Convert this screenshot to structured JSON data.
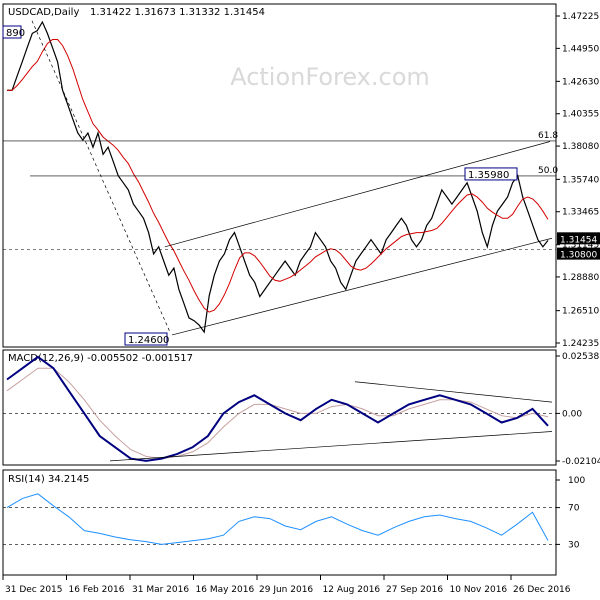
{
  "header": {
    "symbol": "USDCAD,Daily",
    "ohlc": "1.31422 1.31673 1.31332 1.31454"
  },
  "watermark": "ActionForex.com",
  "colors": {
    "price_line": "#000000",
    "ma": "#d40000",
    "macd_line": "#000080",
    "macd_signal": "#c8a0a0",
    "rsi": "#1e90ff",
    "grid_dash": "#000000",
    "watermark": "#d9d9d9"
  },
  "chart_data": [
    {
      "type": "line",
      "panel": "price",
      "title": "USDCAD,Daily",
      "y_axis_ticks": [
        "1.47225",
        "1.44950",
        "1.42630",
        "1.40355",
        "1.38080",
        "1.35740",
        "1.33465",
        "1.31145",
        "1.28880",
        "1.26510",
        "1.24235"
      ],
      "ylim": [
        1.24235,
        1.47225
      ],
      "x_ticks": [
        "31 Dec 2015",
        "16 Feb 2016",
        "31 Mar 2016",
        "16 May 2016",
        "29 Jun 2016",
        "12 Aug 2016",
        "27 Sep 2016",
        "10 Nov 2016",
        "26 Dec 2016"
      ],
      "series": [
        {
          "values": [
            1.42,
            1.42,
            1.43,
            1.44,
            1.45,
            1.46,
            1.462,
            1.468,
            1.46,
            1.45,
            1.44,
            1.42,
            1.41,
            1.4,
            1.39,
            1.385,
            1.39,
            1.38,
            1.39,
            1.375,
            1.38,
            1.37,
            1.36,
            1.355,
            1.35,
            1.34,
            1.335,
            1.33,
            1.32,
            1.305,
            1.31,
            1.3,
            1.29,
            1.295,
            1.28,
            1.27,
            1.26,
            1.258,
            1.255,
            1.25,
            1.2755,
            1.29,
            1.3,
            1.305,
            1.315,
            1.32,
            1.31,
            1.3,
            1.29,
            1.285,
            1.275,
            1.28,
            1.285,
            1.29,
            1.295,
            1.3,
            1.295,
            1.29,
            1.3,
            1.305,
            1.31,
            1.32,
            1.315,
            1.31,
            1.3,
            1.295,
            1.285,
            1.28,
            1.29,
            1.3,
            1.305,
            1.31,
            1.315,
            1.31,
            1.305,
            1.315,
            1.32,
            1.325,
            1.33,
            1.325,
            1.315,
            1.31,
            1.315,
            1.325,
            1.33,
            1.34,
            1.35,
            1.345,
            1.34,
            1.345,
            1.35,
            1.355,
            1.345,
            1.335,
            1.32,
            1.31,
            1.325,
            1.335,
            1.34,
            1.345,
            1.355,
            1.36,
            1.345,
            1.335,
            1.325,
            1.315,
            1.31,
            1.3145
          ]
        }
      ],
      "annotations": [
        {
          "text": "1.24600",
          "x": "31 Mar 2016",
          "y": 1.246
        },
        {
          "text": "1.35980",
          "x": "26 Dec 2016",
          "y": 1.3598
        },
        {
          "text": "1.30800",
          "y": 1.308
        },
        {
          "text": "1.31454",
          "y": 1.31454
        },
        {
          "text": "890",
          "x": "31 Dec 2015",
          "y": 1.4689
        },
        {
          "text": "61.8",
          "y": 1.3844
        },
        {
          "text": "50.0",
          "y": 1.3598
        }
      ]
    },
    {
      "type": "line",
      "panel": "macd",
      "title": "MACD(12,26,9) -0.005502 -0.001517",
      "y_axis_ticks": [
        "0.02538",
        "0.00",
        "-0.021042"
      ],
      "ylim": [
        -0.021042,
        0.02538
      ],
      "series": [
        {
          "values": [
            0.015,
            0.02,
            0.025,
            0.02,
            0.01,
            0.0,
            -0.01,
            -0.015,
            -0.02,
            -0.021,
            -0.02,
            -0.018,
            -0.015,
            -0.01,
            0.0,
            0.005,
            0.008,
            0.004,
            0.0,
            -0.003,
            0.002,
            0.006,
            0.004,
            0.0,
            -0.004,
            0.0,
            0.004,
            0.006,
            0.008,
            0.006,
            0.004,
            0.0,
            -0.004,
            -0.002,
            0.002,
            -0.0055
          ]
        },
        {
          "values": [
            0.01,
            0.015,
            0.02,
            0.02,
            0.014,
            0.006,
            -0.003,
            -0.01,
            -0.016,
            -0.019,
            -0.02,
            -0.019,
            -0.017,
            -0.013,
            -0.006,
            0.0,
            0.004,
            0.004,
            0.002,
            0.0,
            0.0,
            0.003,
            0.004,
            0.002,
            -0.001,
            -0.001,
            0.002,
            0.004,
            0.006,
            0.006,
            0.005,
            0.002,
            -0.001,
            -0.002,
            0.0,
            -0.0015
          ]
        }
      ]
    },
    {
      "type": "line",
      "panel": "rsi",
      "title": "RSI(14) 34.2145",
      "y_axis_ticks": [
        "100",
        "70",
        "30"
      ],
      "ylim": [
        0,
        100
      ],
      "series": [
        {
          "values": [
            70,
            80,
            85,
            72,
            60,
            45,
            42,
            38,
            35,
            33,
            30,
            32,
            34,
            36,
            40,
            55,
            60,
            58,
            50,
            46,
            55,
            60,
            52,
            45,
            40,
            48,
            55,
            60,
            62,
            58,
            55,
            48,
            40,
            52,
            65,
            34.2
          ]
        }
      ]
    }
  ]
}
